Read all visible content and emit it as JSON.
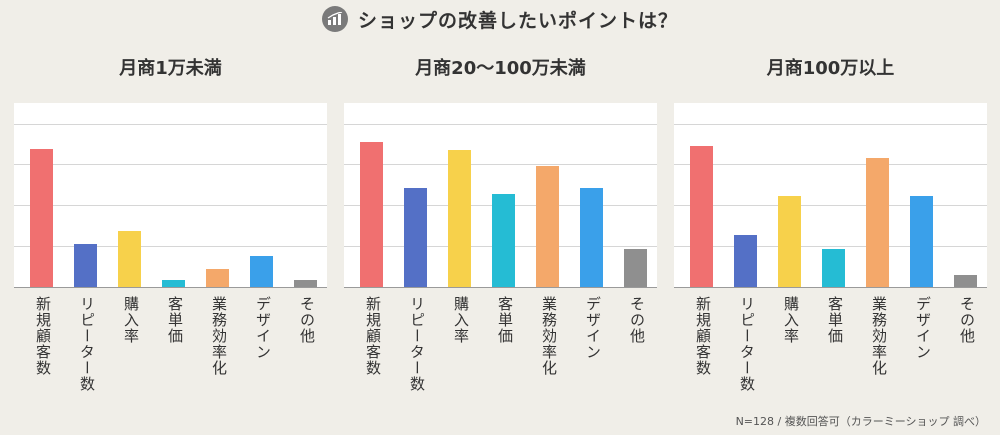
{
  "header": {
    "title": "ショップの改善したいポイントは？",
    "icon": "bar-chart-icon"
  },
  "footnote": "N=128 / 複数回答可（カラーミーショップ 調べ）",
  "categories": [
    "新規顧客数",
    "リピーター数",
    "購入率",
    "客単価",
    "業務効率化",
    "デザイン",
    "その他"
  ],
  "colors": [
    "#f07070",
    "#5470c6",
    "#f7d14b",
    "#25bcd4",
    "#f4a86a",
    "#3aa0ea",
    "#8f8f8f"
  ],
  "chart_data": [
    {
      "type": "bar",
      "title": "月商1万未満",
      "categories": [
        "新規顧客数",
        "リピーター数",
        "購入率",
        "客単価",
        "業務効率化",
        "デザイン",
        "その他"
      ],
      "values": [
        75,
        23.6,
        30.4,
        3.7,
        9.9,
        16.8,
        3.6
      ],
      "ylim": [
        0,
        100
      ],
      "grid": true
    },
    {
      "type": "bar",
      "title": "月商20〜100万未満",
      "categories": [
        "新規顧客数",
        "リピーター数",
        "購入率",
        "客単価",
        "業務効率化",
        "デザイン",
        "その他"
      ],
      "values": [
        78.8,
        54,
        74.5,
        50.3,
        66,
        54,
        20.5
      ],
      "ylim": [
        0,
        100
      ],
      "grid": true
    },
    {
      "type": "bar",
      "title": "月商100万以上",
      "categories": [
        "新規顧客数",
        "リピーター数",
        "購入率",
        "客単価",
        "業務効率化",
        "デザイン",
        "その他"
      ],
      "values": [
        76.5,
        28.4,
        49.5,
        20.5,
        70,
        49.5,
        6.5
      ],
      "ylim": [
        0,
        100
      ],
      "grid": true
    }
  ]
}
